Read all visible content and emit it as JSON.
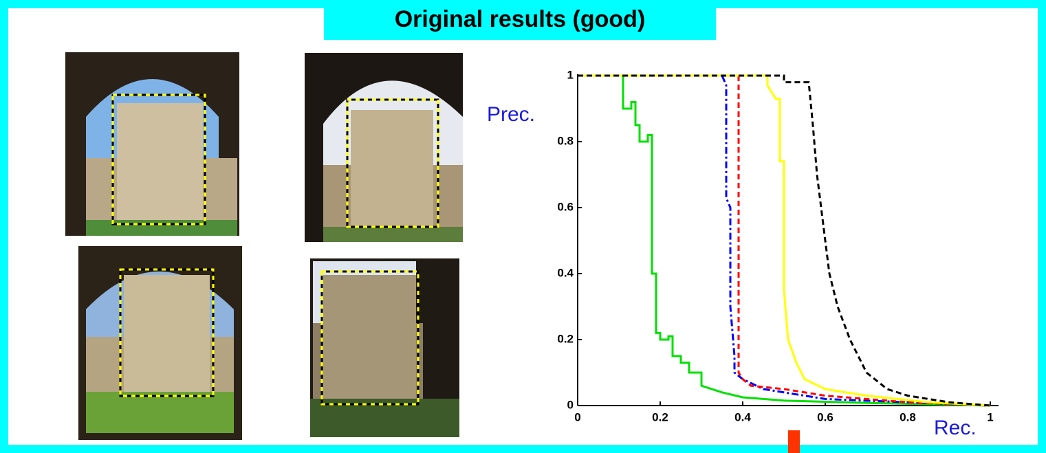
{
  "chart_data": {
    "type": "line",
    "title": "Original results (good)",
    "y_label": "Prec.",
    "x_label": "Rec.",
    "xlim": [
      0,
      1
    ],
    "ylim": [
      0,
      1
    ],
    "xticks": [
      0,
      0.2,
      0.4,
      0.6,
      0.8,
      1
    ],
    "yticks": [
      0,
      0.2,
      0.4,
      0.6,
      0.8,
      1
    ],
    "series": [
      {
        "color": "#00e000",
        "style": "solid",
        "x": [
          0,
          0.11,
          0.11,
          0.13,
          0.13,
          0.14,
          0.14,
          0.15,
          0.15,
          0.17,
          0.17,
          0.18,
          0.18,
          0.19,
          0.19,
          0.2,
          0.2,
          0.22,
          0.22,
          0.23,
          0.23,
          0.25,
          0.25,
          0.27,
          0.27,
          0.3,
          0.3,
          0.35,
          0.4,
          0.5,
          0.7,
          1
        ],
        "values": [
          1,
          1,
          0.9,
          0.9,
          0.92,
          0.92,
          0.85,
          0.85,
          0.8,
          0.8,
          0.82,
          0.82,
          0.4,
          0.4,
          0.22,
          0.22,
          0.2,
          0.2,
          0.21,
          0.21,
          0.15,
          0.15,
          0.13,
          0.13,
          0.1,
          0.1,
          0.06,
          0.04,
          0.025,
          0.015,
          0.008,
          0
        ]
      },
      {
        "color": "#0000ff",
        "style": "dashdot",
        "x": [
          0,
          0.35,
          0.36,
          0.36,
          0.37,
          0.37,
          0.38,
          0.38,
          0.4,
          0.45,
          0.6,
          0.8,
          1
        ],
        "values": [
          1,
          1,
          0.97,
          0.63,
          0.6,
          0.3,
          0.15,
          0.1,
          0.08,
          0.05,
          0.02,
          0.01,
          0
        ]
      },
      {
        "color": "#ff0000",
        "style": "dashed",
        "x": [
          0,
          0.39,
          0.39,
          0.4,
          0.42,
          0.5,
          0.6,
          0.8,
          1
        ],
        "values": [
          1,
          1,
          0.1,
          0.08,
          0.06,
          0.05,
          0.03,
          0.01,
          0
        ]
      },
      {
        "color": "#ffff00",
        "style": "solid",
        "x": [
          0,
          0.46,
          0.46,
          0.48,
          0.49,
          0.49,
          0.5,
          0.5,
          0.51,
          0.53,
          0.55,
          0.6,
          0.7,
          0.85,
          1
        ],
        "values": [
          1,
          1,
          0.97,
          0.93,
          0.93,
          0.74,
          0.74,
          0.35,
          0.2,
          0.13,
          0.08,
          0.05,
          0.03,
          0.01,
          0
        ]
      },
      {
        "color": "#000000",
        "style": "dashed",
        "x": [
          0,
          0.5,
          0.5,
          0.56,
          0.57,
          0.58,
          0.59,
          0.61,
          0.63,
          0.66,
          0.7,
          0.75,
          0.8,
          0.9,
          1
        ],
        "values": [
          1,
          1,
          0.98,
          0.98,
          0.85,
          0.7,
          0.6,
          0.4,
          0.3,
          0.2,
          0.1,
          0.05,
          0.03,
          0.01,
          0
        ]
      }
    ]
  }
}
